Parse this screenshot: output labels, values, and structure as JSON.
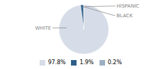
{
  "chart_data": {
    "type": "pie",
    "categories": [
      "WHITE",
      "HISPANIC",
      "BLACK"
    ],
    "values": [
      97.8,
      1.9,
      0.2
    ],
    "value_labels": [
      "97.8%",
      "1.9%",
      "0.2%"
    ],
    "colors": [
      "#d6dde8",
      "#2e5f8a",
      "#9bafc4"
    ],
    "legend": "bottom"
  }
}
